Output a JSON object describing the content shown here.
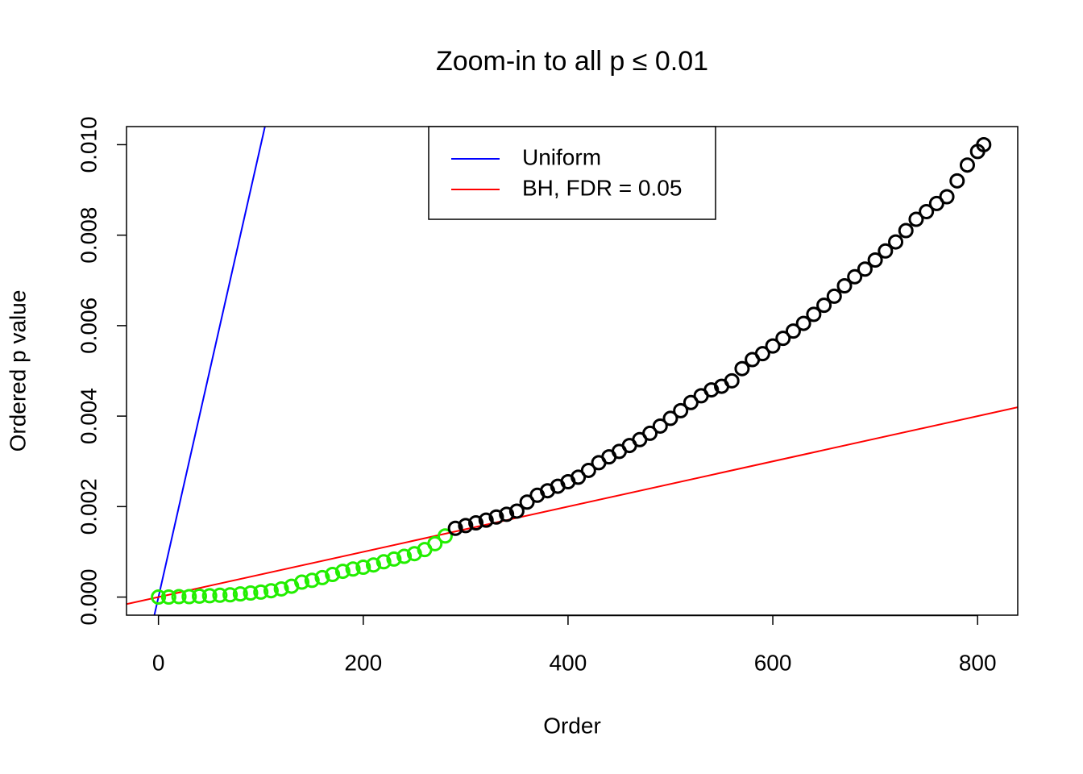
{
  "chart_data": {
    "type": "scatter",
    "title": "Zoom-in to all p ≤ 0.01",
    "x_label": "Order",
    "y_label": "Ordered p value",
    "xlim": [
      -31.2,
      839.2
    ],
    "ylim": [
      -0.0004,
      0.0104
    ],
    "xticks": [
      0,
      200,
      400,
      600,
      800
    ],
    "yticks": [
      {
        "value": 0,
        "label": "0.000"
      },
      0.002,
      0.004,
      0.006,
      0.008,
      {
        "value": 0.01,
        "label": "0.010"
      }
    ],
    "legend": "top",
    "series": [
      {
        "color": "#22ee00",
        "x": [
          0,
          10,
          20,
          30,
          40,
          50,
          60,
          70,
          80,
          90,
          100,
          110,
          120,
          130,
          140,
          150,
          160,
          170,
          180,
          190,
          200,
          210,
          220,
          230,
          240,
          250,
          260,
          270,
          280
        ],
        "values": [
          0,
          0,
          1e-05,
          1e-05,
          2e-05,
          3e-05,
          4e-05,
          5e-05,
          7e-05,
          9e-05,
          0.00011,
          0.00014,
          0.00018,
          0.00024,
          0.00033,
          0.00037,
          0.00043,
          0.0005,
          0.00057,
          0.00062,
          0.00066,
          0.00071,
          0.00078,
          0.00084,
          0.0009,
          0.00096,
          0.00105,
          0.00118,
          0.00135
        ]
      },
      {
        "color": "#000000",
        "x": [
          290,
          300,
          310,
          320,
          330,
          340,
          350,
          360,
          370,
          380,
          390,
          400,
          410,
          420,
          430,
          440,
          450,
          460,
          470,
          480,
          490,
          500,
          510,
          520,
          530,
          540,
          550,
          560,
          570,
          580,
          590,
          600,
          610,
          620,
          630,
          640,
          650,
          660,
          670,
          680,
          690,
          700,
          710,
          720,
          730,
          740,
          750,
          760,
          770,
          780,
          790,
          800,
          806
        ],
        "values": [
          0.00152,
          0.00158,
          0.00164,
          0.0017,
          0.00177,
          0.00183,
          0.0019,
          0.0021,
          0.00225,
          0.00235,
          0.00245,
          0.00255,
          0.00265,
          0.0028,
          0.00297,
          0.0031,
          0.00322,
          0.00335,
          0.00348,
          0.00362,
          0.00378,
          0.00395,
          0.00412,
          0.0043,
          0.00445,
          0.00458,
          0.00466,
          0.00478,
          0.00505,
          0.00525,
          0.00538,
          0.00555,
          0.00572,
          0.00588,
          0.00605,
          0.00625,
          0.00645,
          0.00665,
          0.00688,
          0.00708,
          0.00725,
          0.00745,
          0.00765,
          0.00785,
          0.0081,
          0.00835,
          0.00852,
          0.0087,
          0.00885,
          0.0092,
          0.00955,
          0.00985,
          0.01
        ]
      }
    ],
    "lines": [
      {
        "name": "Uniform",
        "color": "#0000ff",
        "x": [
          -4,
          104
        ],
        "values": [
          -0.0004,
          0.0104
        ]
      },
      {
        "name": "BH, FDR = 0.05",
        "color": "#ff0000",
        "x": [
          -31.2,
          839.2
        ],
        "values": [
          -0.000156,
          0.004196
        ]
      }
    ]
  }
}
